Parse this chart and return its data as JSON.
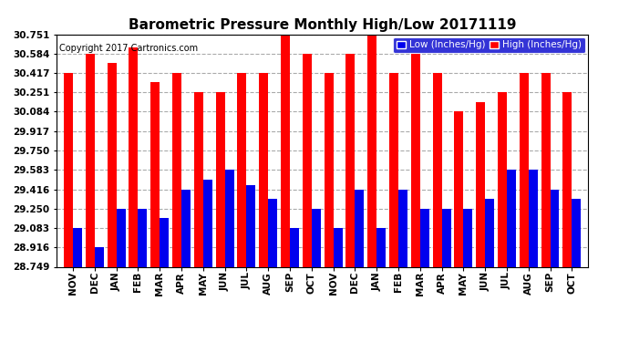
{
  "title": "Barometric Pressure Monthly High/Low 20171119",
  "copyright": "Copyright 2017 Cartronics.com",
  "legend_low": "Low (Inches/Hg)",
  "legend_high": "High (Inches/Hg)",
  "categories": [
    "NOV",
    "DEC",
    "JAN",
    "FEB",
    "MAR",
    "APR",
    "MAY",
    "JUN",
    "JUL",
    "AUG",
    "SEP",
    "OCT",
    "NOV",
    "DEC",
    "JAN",
    "FEB",
    "MAR",
    "APR",
    "MAY",
    "JUN",
    "JUL",
    "AUG",
    "SEP",
    "OCT"
  ],
  "high_values": [
    30.417,
    30.584,
    30.5,
    30.64,
    30.34,
    30.417,
    30.251,
    30.251,
    30.417,
    30.417,
    30.751,
    30.584,
    30.417,
    30.584,
    30.751,
    30.417,
    30.584,
    30.417,
    30.084,
    30.168,
    30.251,
    30.417,
    30.417,
    30.251
  ],
  "low_values": [
    29.083,
    28.916,
    29.25,
    29.25,
    29.166,
    29.416,
    29.5,
    29.583,
    29.45,
    29.333,
    29.083,
    29.25,
    29.083,
    29.416,
    29.083,
    29.416,
    29.25,
    29.25,
    29.25,
    29.333,
    29.583,
    29.583,
    29.416,
    29.333
  ],
  "high_color": "#ff0000",
  "low_color": "#0000ee",
  "background_color": "#ffffff",
  "grid_color": "#aaaaaa",
  "ylim_min": 28.749,
  "ylim_max": 30.751,
  "yticks": [
    28.749,
    28.916,
    29.083,
    29.25,
    29.416,
    29.583,
    29.75,
    29.917,
    30.084,
    30.251,
    30.417,
    30.584,
    30.751
  ],
  "title_fontsize": 11,
  "copyright_fontsize": 7,
  "tick_fontsize": 7.5,
  "bar_width": 0.42,
  "legend_fontsize": 7.5
}
